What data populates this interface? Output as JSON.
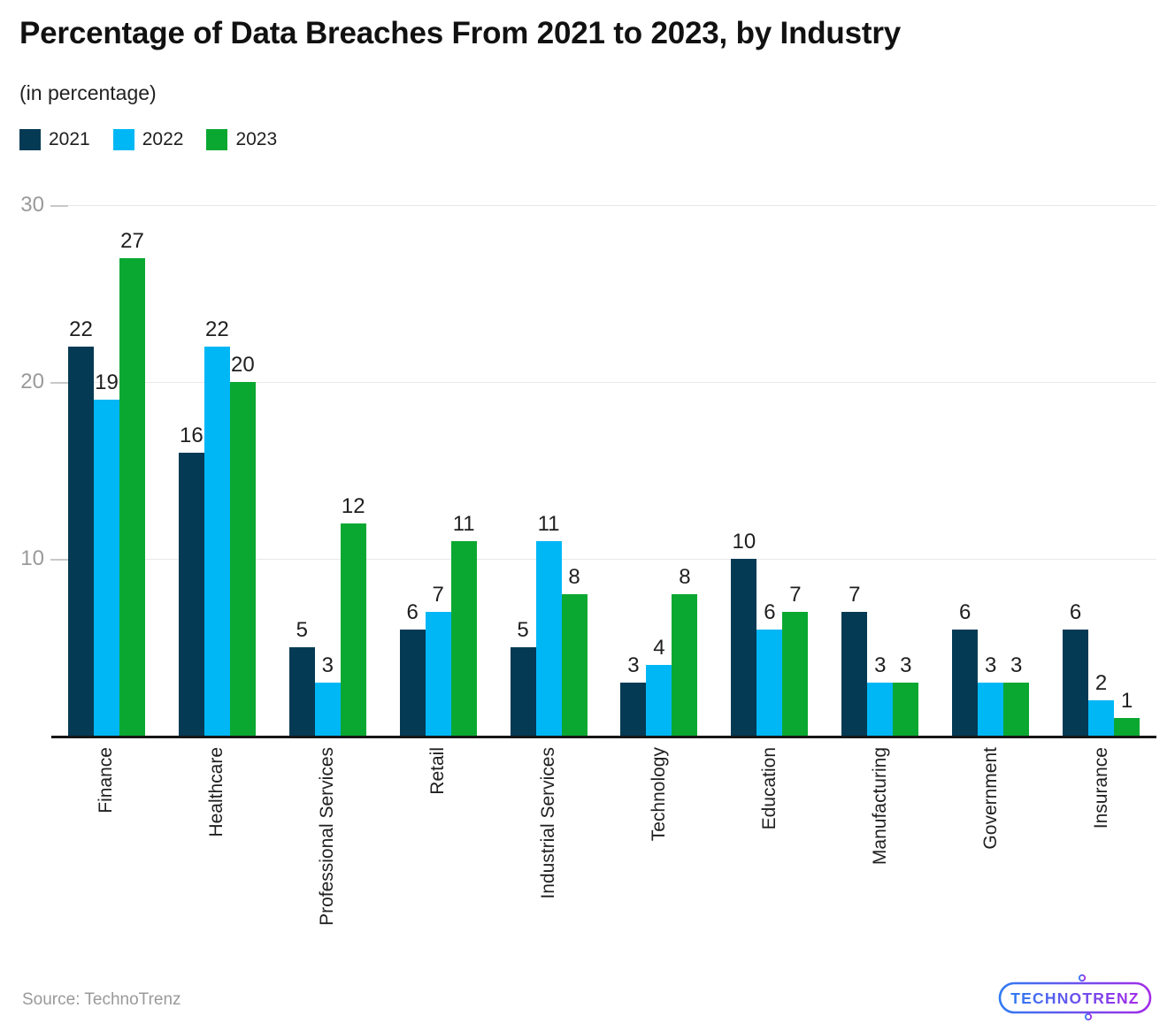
{
  "header": {
    "title": "Percentage of Data Breaches From 2021 to 2023, by Industry",
    "subtitle": "(in percentage)"
  },
  "legend": [
    {
      "label": "2021",
      "color": "#053a54"
    },
    {
      "label": "2022",
      "color": "#00b7f6"
    },
    {
      "label": "2023",
      "color": "#0aa831"
    }
  ],
  "chart_data": {
    "type": "bar",
    "grouped": true,
    "title": "Percentage of Data Breaches From 2021 to 2023, by Industry",
    "subtitle": "(in percentage)",
    "categories": [
      "Finance",
      "Healthcare",
      "Professional Services",
      "Retail",
      "Industrial Services",
      "Technology",
      "Education",
      "Manufacturing",
      "Government",
      "Insurance"
    ],
    "series": [
      {
        "name": "2021",
        "color": "#053a54",
        "values": [
          22,
          16,
          5,
          6,
          5,
          3,
          10,
          7,
          6,
          6
        ]
      },
      {
        "name": "2022",
        "color": "#00b7f6",
        "values": [
          19,
          22,
          3,
          7,
          11,
          4,
          6,
          3,
          3,
          2
        ]
      },
      {
        "name": "2023",
        "color": "#0aa831",
        "values": [
          27,
          20,
          12,
          11,
          8,
          8,
          7,
          3,
          3,
          1
        ]
      }
    ],
    "ylim": [
      0,
      30
    ],
    "yticks": [
      10,
      20,
      30
    ],
    "grid": "horizontal",
    "legend_position": "top-left",
    "value_labels": true,
    "xlabel": "",
    "ylabel": ""
  },
  "colors": {
    "grid": "#e8e8e8",
    "tick": "#c8c8c8",
    "axis": "#161616",
    "y_label": "#9a9a9a",
    "value_label": "#1f1f1f",
    "category_label": "#1f1f1f"
  },
  "footer": {
    "source": "Source: TechnoTrenz",
    "logo_text": "TECHNOTRENZ",
    "logo_gradient_start": "#2f7bf2",
    "logo_gradient_end": "#a32be8"
  }
}
